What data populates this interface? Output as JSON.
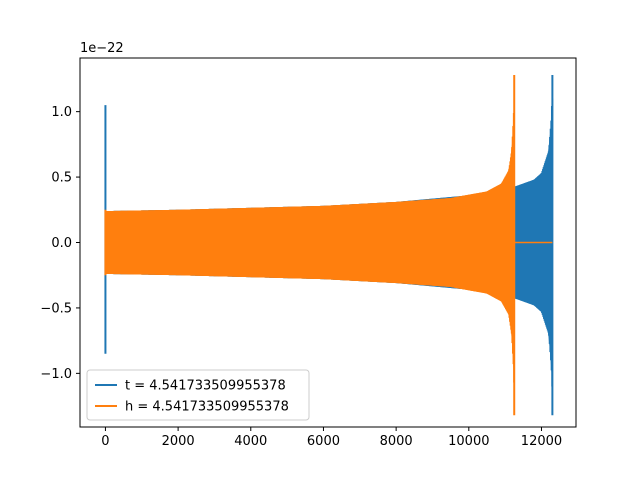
{
  "chart_data": {
    "type": "line",
    "title": "",
    "xlabel": "",
    "ylabel": "",
    "offset_label": "1e−22",
    "xlim": [
      -700,
      12950
    ],
    "ylim": [
      -1.41,
      1.41
    ],
    "x_ticks": [
      0,
      2000,
      4000,
      6000,
      8000,
      10000,
      12000
    ],
    "x_tick_labels": [
      "0",
      "2000",
      "4000",
      "6000",
      "8000",
      "10000",
      "12000"
    ],
    "y_ticks": [
      -1.0,
      -0.5,
      0.0,
      0.5,
      1.0
    ],
    "y_tick_labels": [
      "−1.0",
      "−0.5",
      "0.0",
      "0.5",
      "1.0"
    ],
    "legend_position": "lower-left",
    "grid": false,
    "series": [
      {
        "name": "t = 4.541733509955378",
        "color": "#1f77b4",
        "start_x": 0,
        "end_x": 12300,
        "spike_start": {
          "max": 1.05,
          "min": -0.85
        },
        "envelope": [
          {
            "x": 0,
            "amp": 0.24
          },
          {
            "x": 2000,
            "amp": 0.25
          },
          {
            "x": 4000,
            "amp": 0.265
          },
          {
            "x": 6000,
            "amp": 0.28
          },
          {
            "x": 8000,
            "amp": 0.31
          },
          {
            "x": 10000,
            "amp": 0.36
          },
          {
            "x": 11000,
            "amp": 0.41
          },
          {
            "x": 11300,
            "amp": 0.43
          },
          {
            "x": 11800,
            "amp": 0.48
          },
          {
            "x": 12000,
            "amp": 0.53
          },
          {
            "x": 12200,
            "amp": 0.7
          },
          {
            "x": 12270,
            "amp": 0.95
          },
          {
            "x": 12290,
            "amp": 1.1
          }
        ],
        "spike_end": {
          "max": 1.28,
          "min": -1.32
        }
      },
      {
        "name": "h = 4.541733509955378",
        "color": "#ff7f0e",
        "start_x": 0,
        "end_x": 11250,
        "spike_start": {
          "max": 0.25,
          "min": -0.25
        },
        "envelope": [
          {
            "x": 0,
            "amp": 0.24
          },
          {
            "x": 2000,
            "amp": 0.25
          },
          {
            "x": 4000,
            "amp": 0.265
          },
          {
            "x": 6000,
            "amp": 0.28
          },
          {
            "x": 8000,
            "amp": 0.31
          },
          {
            "x": 9500,
            "amp": 0.34
          },
          {
            "x": 10500,
            "amp": 0.39
          },
          {
            "x": 10900,
            "amp": 0.45
          },
          {
            "x": 11100,
            "amp": 0.55
          },
          {
            "x": 11180,
            "amp": 0.7
          },
          {
            "x": 11230,
            "amp": 0.95
          },
          {
            "x": 11245,
            "amp": 1.1
          }
        ],
        "spike_end": {
          "max": 1.28,
          "min": -1.32
        },
        "flat_after": {
          "x_from": 11250,
          "x_to": 12300,
          "y": 0.0
        }
      }
    ]
  }
}
